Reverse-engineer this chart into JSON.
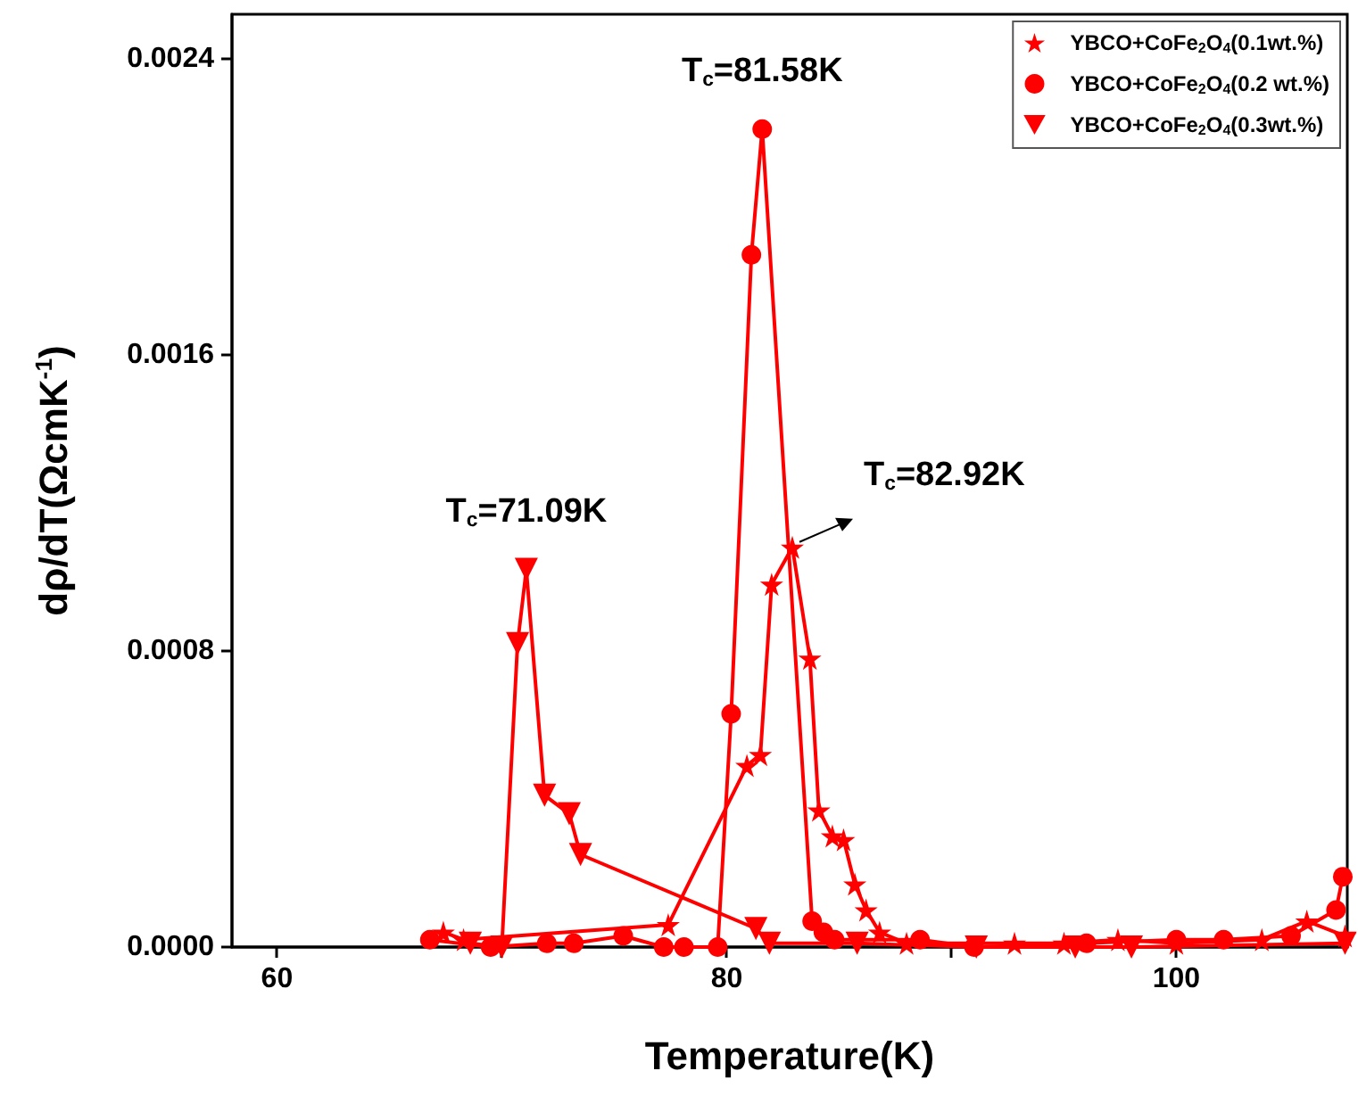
{
  "chart_data": {
    "type": "line",
    "xlabel": "Temperature(K)",
    "ylabel": "dρ/dT(ΩcmK$^{-1}$)",
    "xlim": [
      58,
      107.6
    ],
    "ylim": [
      0,
      0.00252
    ],
    "xticks": [
      60,
      {
        "value": 70,
        "label": null
      },
      80,
      {
        "value": 90,
        "label": null
      },
      100
    ],
    "yticks": [
      {
        "value": 0,
        "label": "0.0000"
      },
      {
        "value": 0.0008,
        "label": "0.0008"
      },
      {
        "value": 0.0016,
        "label": "0.0016"
      },
      {
        "value": 0.0024,
        "label": "0.0024"
      }
    ],
    "grid": false,
    "legend": "top right",
    "line_style": "solid",
    "series": [
      {
        "name": "YBCO+CoFe$_{2}$O$_{4}$(0.1wt.%)",
        "color": "#ff0000",
        "marker": "star",
        "x": [
          67.4,
          68.3,
          77.4,
          80.9,
          81.5,
          82.0,
          82.92,
          83.7,
          84.1,
          84.7,
          85.2,
          85.7,
          86.2,
          86.8,
          88.0,
          92.8,
          95.0,
          97.4,
          100.0,
          103.8,
          105.8,
          107.5
        ],
        "values": [
          4e-05,
          2e-05,
          6e-05,
          0.00049,
          0.00052,
          0.00098,
          0.00108,
          0.00078,
          0.00037,
          0.0003,
          0.00029,
          0.00017,
          0.0001,
          4e-05,
          1e-05,
          1e-05,
          1e-05,
          2e-05,
          1e-05,
          2e-05,
          7e-05,
          3e-05
        ]
      },
      {
        "name": "YBCO+CoFe$_{2}$O$_{4}$(0.2 wt.%)",
        "color": "#ff0000",
        "marker": "circle",
        "x": [
          66.8,
          69.5,
          72.0,
          73.2,
          75.4,
          77.2,
          78.1,
          79.6,
          80.2,
          81.1,
          81.58,
          83.8,
          84.3,
          84.8,
          88.6,
          91.0,
          96.0,
          100.0,
          102.1,
          105.1,
          107.1,
          107.4
        ],
        "values": [
          2e-05,
          0,
          1e-05,
          1e-05,
          3e-05,
          0,
          0,
          0,
          0.00063,
          0.00187,
          0.00221,
          7e-05,
          4e-05,
          2e-05,
          2e-05,
          0,
          1e-05,
          2e-05,
          2e-05,
          3e-05,
          0.0001,
          0.00019
        ]
      },
      {
        "name": "YBCO+CoFe$_{2}$O$_{4}$(0.3wt.%)",
        "color": "#ff0000",
        "marker": "triangle",
        "x": [
          68.6,
          70.0,
          70.7,
          71.09,
          71.9,
          73.0,
          73.5,
          81.3,
          81.9,
          85.8,
          91.1,
          95.5,
          98.0,
          107.5
        ],
        "values": [
          1e-05,
          0,
          0.00082,
          0.00102,
          0.00041,
          0.00036,
          0.00025,
          5e-05,
          1e-05,
          1e-05,
          0,
          0,
          0,
          1e-05
        ]
      }
    ],
    "annotations": [
      {
        "text": "T$_{c}$=81.58K",
        "x": 81.58,
        "y": 0.00221
      },
      {
        "text": "T$_{c}$=71.09K",
        "x": 71.09,
        "y": 0.00102
      },
      {
        "text": "T$_{c}$=82.92K",
        "x": 82.92,
        "y": 0.00108
      }
    ]
  }
}
